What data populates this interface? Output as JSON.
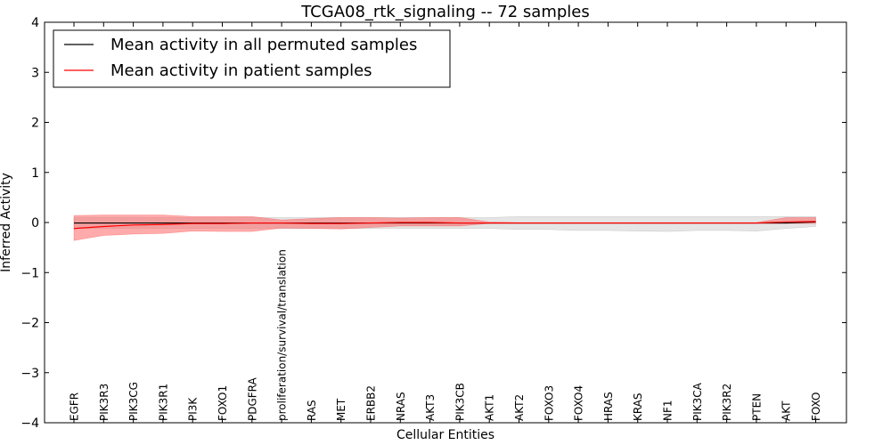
{
  "chart_data": {
    "type": "line",
    "title": "TCGA08_rtk_signaling -- 72 samples",
    "xlabel": "Cellular Entities",
    "ylabel": "Inferred Activity",
    "ylim": [
      -4,
      4
    ],
    "yticks": [
      4,
      3,
      2,
      1,
      0,
      -1,
      -2,
      -3,
      -4
    ],
    "ytick_labels": [
      "4",
      "3",
      "2",
      "1",
      "0",
      "−1",
      "−2",
      "−3",
      "−4"
    ],
    "grid": false,
    "legend_position": "top-left",
    "categories": [
      "EGFR",
      "PIK3R3",
      "PIK3CG",
      "PIK3R1",
      "PI3K",
      "FOXO1",
      "PDGFRA",
      "proliferation/survival/translation",
      "RAS",
      "MET",
      "ERBB2",
      "NRAS",
      "AKT3",
      "PIK3CB",
      "AKT1",
      "AKT2",
      "FOXO3",
      "FOXO4",
      "HRAS",
      "KRAS",
      "NF1",
      "PIK3CA",
      "PIK3R2",
      "PTEN",
      "AKT",
      "FOXO"
    ],
    "series": [
      {
        "name": "Mean activity in all permuted samples",
        "color": "#000000",
        "band_color": "#cccccc",
        "values": [
          -0.01,
          -0.01,
          -0.01,
          -0.01,
          -0.01,
          -0.01,
          -0.01,
          -0.01,
          -0.01,
          -0.01,
          -0.01,
          -0.01,
          -0.01,
          -0.01,
          -0.01,
          -0.01,
          -0.01,
          -0.01,
          -0.01,
          -0.01,
          -0.01,
          -0.01,
          -0.01,
          -0.01,
          -0.01,
          0.01
        ],
        "upper": [
          0.1,
          0.1,
          0.1,
          0.1,
          0.1,
          0.1,
          0.1,
          0.1,
          0.1,
          0.1,
          0.1,
          0.1,
          0.1,
          0.1,
          0.1,
          0.12,
          0.12,
          0.12,
          0.12,
          0.12,
          0.12,
          0.12,
          0.12,
          0.12,
          0.12,
          0.12
        ],
        "lower": [
          -0.12,
          -0.12,
          -0.12,
          -0.12,
          -0.12,
          -0.12,
          -0.12,
          -0.12,
          -0.12,
          -0.12,
          -0.12,
          -0.12,
          -0.12,
          -0.12,
          -0.12,
          -0.14,
          -0.14,
          -0.16,
          -0.16,
          -0.17,
          -0.18,
          -0.16,
          -0.16,
          -0.17,
          -0.12,
          -0.08
        ]
      },
      {
        "name": "Mean activity in patient samples",
        "color": "#ff0000",
        "band_color": "#ff6666",
        "values": [
          -0.12,
          -0.08,
          -0.05,
          -0.04,
          -0.02,
          -0.02,
          -0.01,
          -0.01,
          -0.02,
          -0.02,
          -0.01,
          0.0,
          0.0,
          -0.01,
          -0.01,
          -0.01,
          -0.01,
          -0.01,
          -0.01,
          -0.01,
          -0.01,
          -0.01,
          -0.01,
          -0.01,
          0.01,
          0.02
        ],
        "upper": [
          0.14,
          0.15,
          0.15,
          0.15,
          0.12,
          0.12,
          0.12,
          0.05,
          0.08,
          0.1,
          0.1,
          0.09,
          0.1,
          0.1,
          0.01,
          0.0,
          0.0,
          0.0,
          0.0,
          0.0,
          0.0,
          0.0,
          0.0,
          0.0,
          0.1,
          0.1
        ],
        "lower": [
          -0.36,
          -0.26,
          -0.23,
          -0.22,
          -0.17,
          -0.18,
          -0.18,
          -0.11,
          -0.12,
          -0.13,
          -0.1,
          -0.07,
          -0.07,
          -0.07,
          -0.02,
          -0.02,
          -0.02,
          -0.02,
          -0.02,
          -0.02,
          -0.02,
          -0.02,
          -0.02,
          -0.02,
          -0.02,
          -0.02
        ]
      }
    ]
  }
}
